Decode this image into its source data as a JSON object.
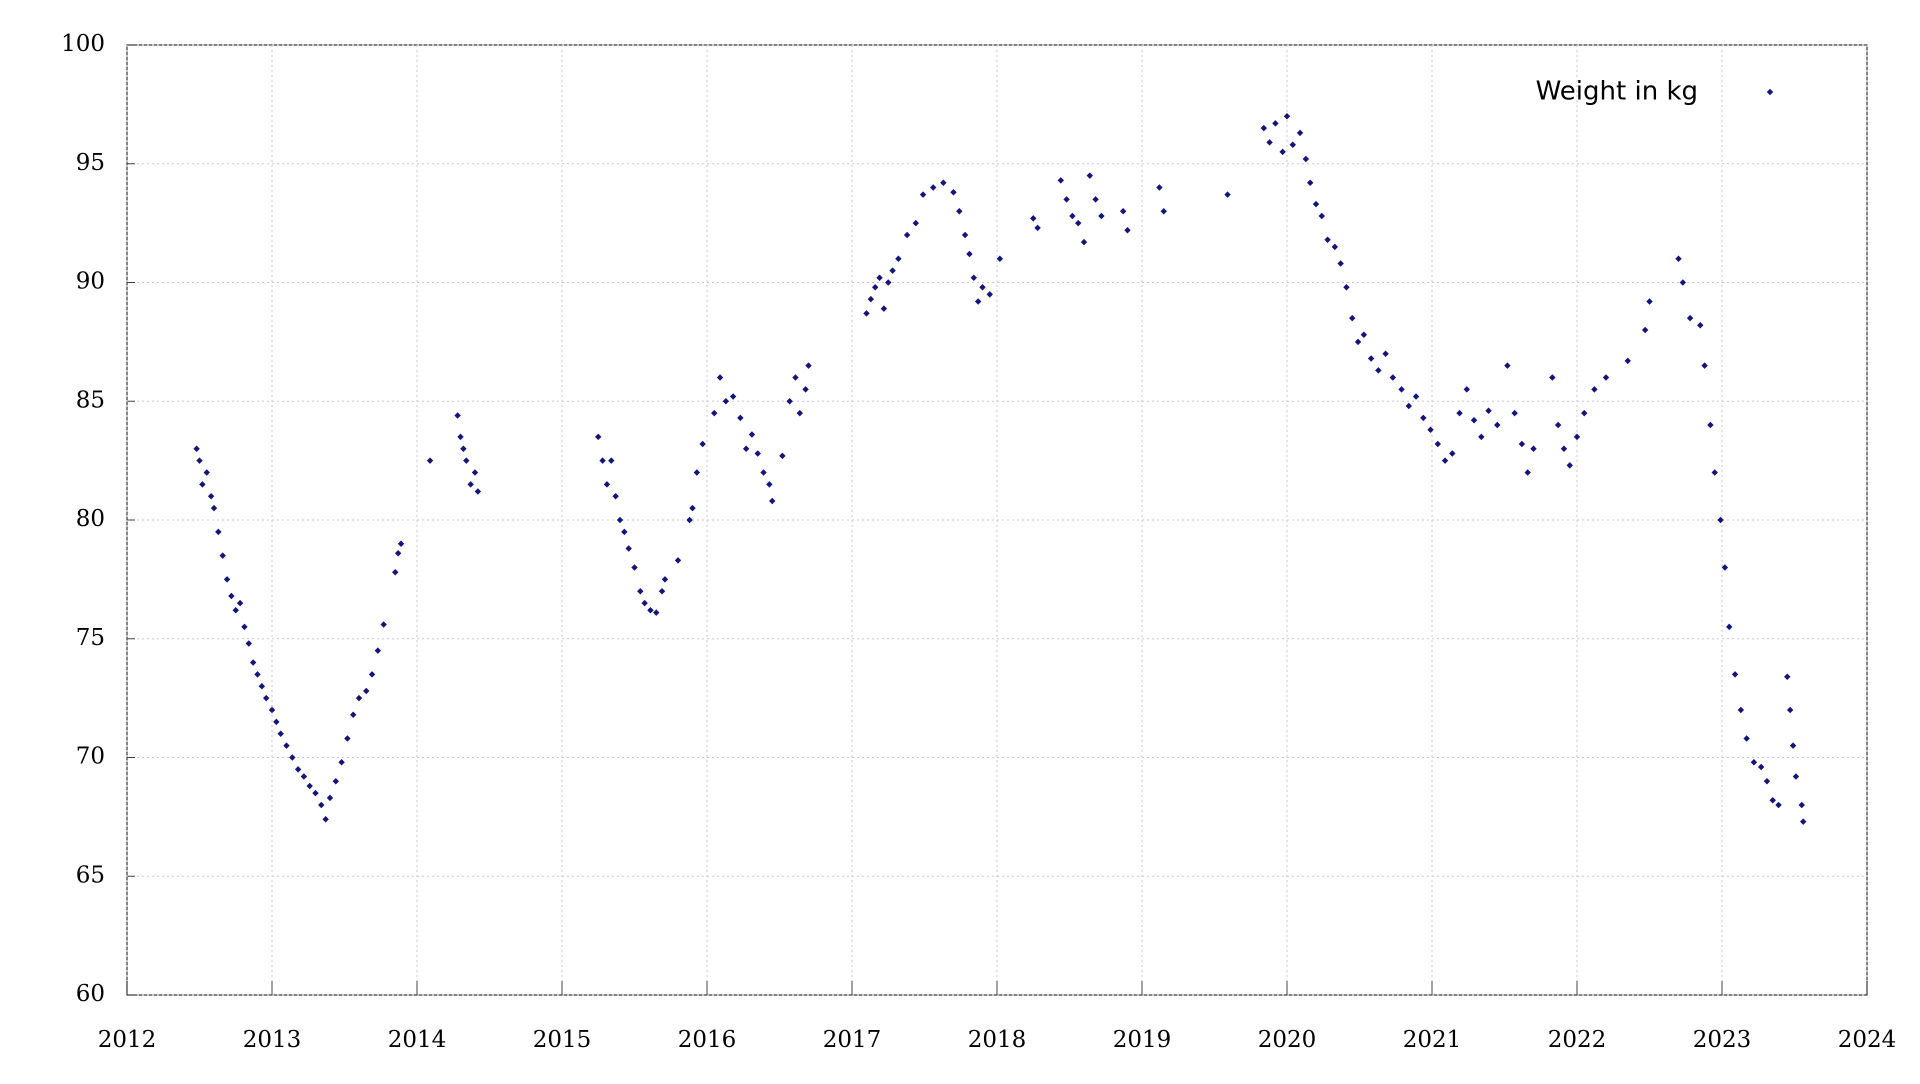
{
  "chart_data": {
    "type": "scatter",
    "x": [
      2012.48,
      2012.5,
      2012.52,
      2012.55,
      2012.58,
      2012.6,
      2012.63,
      2012.66,
      2012.69,
      2012.72,
      2012.75,
      2012.78,
      2012.81,
      2012.84,
      2012.87,
      2012.9,
      2012.93,
      2012.96,
      2013.0,
      2013.03,
      2013.06,
      2013.1,
      2013.14,
      2013.18,
      2013.22,
      2013.26,
      2013.3,
      2013.34,
      2013.37,
      2013.4,
      2013.44,
      2013.48,
      2013.52,
      2013.56,
      2013.6,
      2013.65,
      2013.69,
      2013.73,
      2013.77,
      2013.85,
      2013.87,
      2013.89,
      2014.09,
      2014.28,
      2014.3,
      2014.32,
      2014.34,
      2014.37,
      2014.4,
      2014.42,
      2015.25,
      2015.28,
      2015.31,
      2015.34,
      2015.37,
      2015.4,
      2015.43,
      2015.46,
      2015.5,
      2015.54,
      2015.57,
      2015.61,
      2015.65,
      2015.69,
      2015.71,
      2015.8,
      2015.88,
      2015.9,
      2015.93,
      2015.97,
      2016.05,
      2016.09,
      2016.13,
      2016.18,
      2016.23,
      2016.27,
      2016.31,
      2016.35,
      2016.39,
      2016.43,
      2016.45,
      2016.52,
      2016.57,
      2016.61,
      2016.64,
      2016.68,
      2016.7,
      2017.1,
      2017.13,
      2017.16,
      2017.19,
      2017.22,
      2017.25,
      2017.28,
      2017.32,
      2017.38,
      2017.44,
      2017.49,
      2017.56,
      2017.63,
      2017.7,
      2017.74,
      2017.78,
      2017.81,
      2017.84,
      2017.87,
      2017.9,
      2017.95,
      2018.02,
      2018.25,
      2018.28,
      2018.44,
      2018.48,
      2018.52,
      2018.56,
      2018.6,
      2018.64,
      2018.68,
      2018.72,
      2018.87,
      2018.9,
      2019.12,
      2019.15,
      2019.59,
      2019.84,
      2019.88,
      2019.92,
      2019.97,
      2020.0,
      2020.04,
      2020.09,
      2020.13,
      2020.16,
      2020.2,
      2020.24,
      2020.28,
      2020.33,
      2020.37,
      2020.41,
      2020.45,
      2020.49,
      2020.53,
      2020.58,
      2020.63,
      2020.68,
      2020.73,
      2020.79,
      2020.84,
      2020.89,
      2020.94,
      2020.99,
      2021.04,
      2021.09,
      2021.14,
      2021.19,
      2021.24,
      2021.29,
      2021.34,
      2021.39,
      2021.45,
      2021.52,
      2021.57,
      2021.62,
      2021.66,
      2021.7,
      2021.83,
      2021.87,
      2021.91,
      2021.95,
      2022.0,
      2022.05,
      2022.12,
      2022.2,
      2022.35,
      2022.47,
      2022.5,
      2022.7,
      2022.73,
      2022.78,
      2022.85,
      2022.88,
      2022.92,
      2022.95,
      2022.99,
      2023.02,
      2023.05,
      2023.09,
      2023.13,
      2023.17,
      2023.22,
      2023.27,
      2023.31,
      2023.35,
      2023.39,
      2023.45,
      2023.47,
      2023.49,
      2023.51,
      2023.55,
      2023.56
    ],
    "series": [
      {
        "name": "Weight in kg",
        "color": "#14147a",
        "values": [
          83.0,
          82.5,
          81.5,
          82.0,
          81.0,
          80.5,
          79.5,
          78.5,
          77.5,
          76.8,
          76.2,
          76.5,
          75.5,
          74.8,
          74.0,
          73.5,
          73.0,
          72.5,
          72.0,
          71.5,
          71.0,
          70.5,
          70.0,
          69.5,
          69.2,
          68.8,
          68.5,
          68.0,
          67.4,
          68.3,
          69.0,
          69.8,
          70.8,
          71.8,
          72.5,
          72.8,
          73.5,
          74.5,
          75.6,
          77.8,
          78.6,
          79.0,
          82.5,
          84.4,
          83.5,
          83.0,
          82.5,
          81.5,
          82.0,
          81.2,
          83.5,
          82.5,
          81.5,
          82.5,
          81.0,
          80.0,
          79.5,
          78.8,
          78.0,
          77.0,
          76.5,
          76.2,
          76.1,
          77.0,
          77.5,
          78.3,
          80.0,
          80.5,
          82.0,
          83.2,
          84.5,
          86.0,
          85.0,
          85.2,
          84.3,
          83.0,
          83.6,
          82.8,
          82.0,
          81.5,
          80.8,
          82.7,
          85.0,
          86.0,
          84.5,
          85.5,
          86.5,
          88.7,
          89.3,
          89.8,
          90.2,
          88.9,
          90.0,
          90.5,
          91.0,
          92.0,
          92.5,
          93.7,
          94.0,
          94.2,
          93.8,
          93.0,
          92.0,
          91.2,
          90.2,
          89.2,
          89.8,
          89.5,
          91.0,
          92.7,
          92.3,
          94.3,
          93.5,
          92.8,
          92.5,
          91.7,
          94.5,
          93.5,
          92.8,
          93.0,
          92.2,
          94.0,
          93.0,
          93.7,
          96.5,
          95.9,
          96.7,
          95.5,
          97.0,
          95.8,
          96.3,
          95.2,
          94.2,
          93.3,
          92.8,
          91.8,
          91.5,
          90.8,
          89.8,
          88.5,
          87.5,
          87.8,
          86.8,
          86.3,
          87.0,
          86.0,
          85.5,
          84.8,
          85.2,
          84.3,
          83.8,
          83.2,
          82.5,
          82.8,
          84.5,
          85.5,
          84.2,
          83.5,
          84.6,
          84.0,
          86.5,
          84.5,
          83.2,
          82.0,
          83.0,
          86.0,
          84.0,
          83.0,
          82.3,
          83.5,
          84.5,
          85.5,
          86.0,
          86.7,
          88.0,
          89.2,
          91.0,
          90.0,
          88.5,
          88.2,
          86.5,
          84.0,
          82.0,
          80.0,
          78.0,
          75.5,
          73.5,
          72.0,
          70.8,
          69.8,
          69.6,
          69.0,
          68.2,
          68.0,
          73.4,
          72.0,
          70.5,
          69.2,
          68.0,
          67.3
        ]
      }
    ],
    "xlim": [
      2012,
      2024
    ],
    "ylim": [
      60,
      100
    ],
    "xticks": [
      2012,
      2013,
      2014,
      2015,
      2016,
      2017,
      2018,
      2019,
      2020,
      2021,
      2022,
      2023,
      2024
    ],
    "yticks": [
      60,
      65,
      70,
      75,
      80,
      85,
      90,
      95,
      100
    ],
    "grid": true,
    "legend": "upper right"
  }
}
